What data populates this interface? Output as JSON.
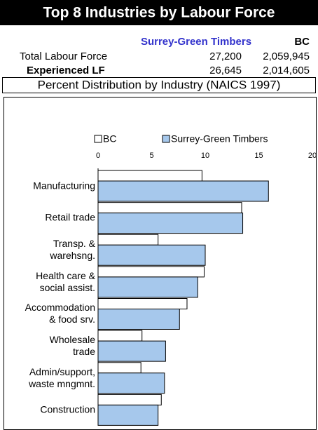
{
  "header": {
    "title": "Top 8 Industries by Labour Force",
    "columns": [
      "Surrey-Green Timbers",
      "BC"
    ],
    "rows": [
      {
        "label": "Total Labour Force",
        "values": [
          "27,200",
          "2,059,945"
        ]
      },
      {
        "label": "Experienced LF",
        "values": [
          "26,645",
          "2,014,605"
        ]
      }
    ]
  },
  "chart_data": {
    "type": "hbar",
    "title": "Percent Distribution by Industry (NAICS 1997)",
    "categories": [
      "Manufacturing",
      "Retail trade",
      "Transp. &\nwarehsng.",
      "Health care &\nsocial assist.",
      "Accommodation\n& food srv.",
      "Wholesale\ntrade",
      "Admin/support,\nwaste mngmnt.",
      "Construction"
    ],
    "series": [
      {
        "name": "BC",
        "color": "#ffffff",
        "values": [
          9.7,
          13.4,
          5.6,
          9.9,
          8.3,
          4.1,
          4.0,
          5.9
        ]
      },
      {
        "name": "Surrey-Green Timbers",
        "color": "#a6c8ec",
        "values": [
          15.9,
          13.5,
          10.0,
          9.3,
          7.6,
          6.3,
          6.2,
          5.6
        ]
      }
    ],
    "xlim": [
      0,
      20
    ],
    "xticks": [
      0,
      5,
      10,
      15,
      20
    ],
    "grid": false,
    "legend": "top"
  }
}
